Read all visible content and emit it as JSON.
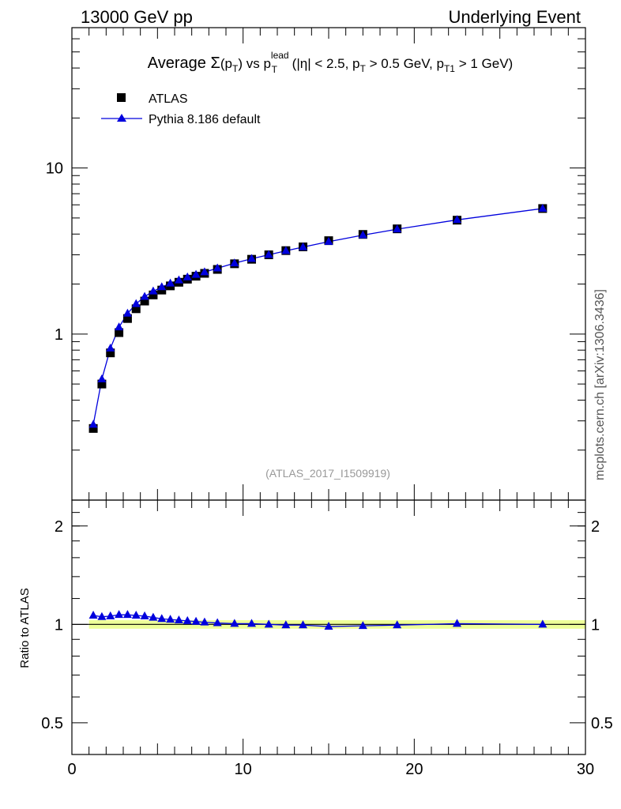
{
  "header": {
    "left": "13000 GeV pp",
    "right": "Underlying Event"
  },
  "watermark": "mcplots.cern.ch [arXiv:1306.3436]",
  "analysis_id": "(ATLAS_2017_I1509919)",
  "colors": {
    "data": "#000000",
    "mc": "#0000dd",
    "band": "#eeff99",
    "frame": "#000000"
  },
  "chart_data": [
    {
      "type": "scatter",
      "panel": "main",
      "title": "Average Σ(p_T) vs p_T^lead (|η| < 2.5, p_T > 0.5 GeV, p_T1 > 1 GeV)",
      "title_parts": {
        "prefix": "Average ",
        "sigma": "Σ",
        "sumpt_open": "(p",
        "sumpt_sub": "T",
        "sumpt_close": ")",
        "vs": " vs p",
        "lead_sup": "lead",
        "lead_sub": "T",
        "eta": " (|η| < 2.5, p",
        "pt_sub": "T",
        "pt_cut": " > 0.5 GeV, p",
        "pt1_sub": "T1",
        "pt1_cut": " > 1 GeV)"
      },
      "xlim": [
        0,
        30
      ],
      "ylim": [
        0.1,
        70
      ],
      "yscale": "log",
      "ytick_labels": [
        "1",
        "10"
      ],
      "legend_position": "top-left",
      "x": [
        1.25,
        1.75,
        2.25,
        2.75,
        3.25,
        3.75,
        4.25,
        4.75,
        5.25,
        5.75,
        6.25,
        6.75,
        7.25,
        7.75,
        8.5,
        9.5,
        10.5,
        11.5,
        12.5,
        13.5,
        15,
        17,
        19,
        22.5,
        27.5
      ],
      "series": [
        {
          "name": "ATLAS",
          "marker": "square",
          "values": [
            0.27,
            0.5,
            0.77,
            1.02,
            1.24,
            1.42,
            1.58,
            1.72,
            1.84,
            1.95,
            2.05,
            2.14,
            2.23,
            2.32,
            2.45,
            2.65,
            2.82,
            3.0,
            3.18,
            3.35,
            3.65,
            3.98,
            4.3,
            4.85,
            5.7
          ]
        },
        {
          "name": "Pythia 8.186 default",
          "marker": "triangle",
          "values": [
            0.285,
            0.535,
            0.82,
            1.1,
            1.33,
            1.52,
            1.68,
            1.81,
            1.92,
            2.02,
            2.11,
            2.2,
            2.28,
            2.36,
            2.49,
            2.67,
            2.84,
            3.0,
            3.17,
            3.34,
            3.6,
            3.94,
            4.28,
            4.87,
            5.7
          ]
        }
      ]
    },
    {
      "type": "line",
      "panel": "ratio",
      "ylabel": "Ratio to ATLAS",
      "xlim": [
        0,
        30
      ],
      "ylim": [
        0.4,
        2.4
      ],
      "yscale": "log",
      "xtick_labels": [
        "0",
        "10",
        "20",
        "30"
      ],
      "ytick_labels": [
        "0.5",
        "1",
        "2"
      ],
      "x": [
        1.25,
        1.75,
        2.25,
        2.75,
        3.25,
        3.75,
        4.25,
        4.75,
        5.25,
        5.75,
        6.25,
        6.75,
        7.25,
        7.75,
        8.5,
        9.5,
        10.5,
        11.5,
        12.5,
        13.5,
        15,
        17,
        19,
        22.5,
        27.5
      ],
      "series": [
        {
          "name": "Pythia 8.186 default",
          "values": [
            1.065,
            1.055,
            1.06,
            1.07,
            1.07,
            1.065,
            1.06,
            1.05,
            1.04,
            1.035,
            1.03,
            1.025,
            1.02,
            1.015,
            1.01,
            1.005,
            1.005,
            1.0,
            0.995,
            0.995,
            0.985,
            0.99,
            0.995,
            1.005,
            1.0
          ]
        }
      ],
      "band": [
        0.97,
        1.03
      ]
    }
  ]
}
